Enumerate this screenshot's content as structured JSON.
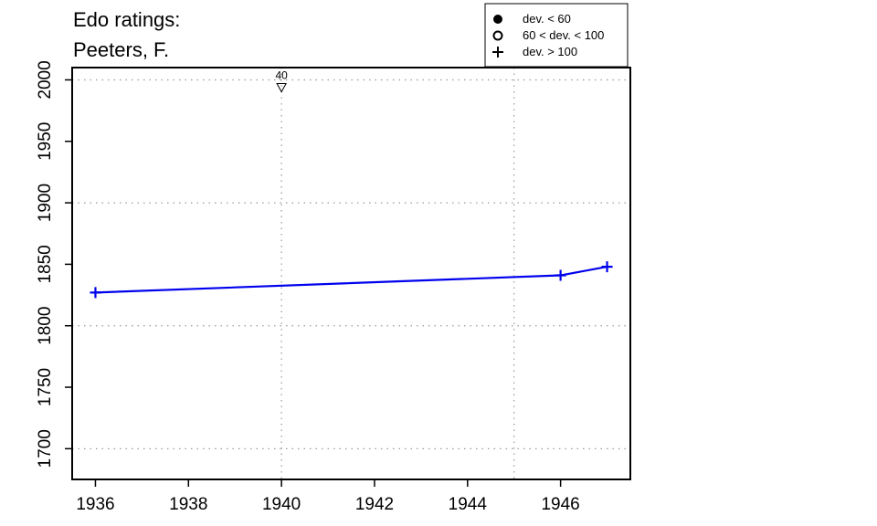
{
  "chart_data": {
    "type": "line",
    "title": [
      "Edo ratings:",
      "Peeters, F."
    ],
    "xlabel": "",
    "ylabel": "",
    "xlim": [
      1935.5,
      1947.5
    ],
    "ylim": [
      1675,
      2010
    ],
    "x_ticks": [
      1936,
      1938,
      1940,
      1942,
      1944,
      1946
    ],
    "x_tick_labels": [
      "1936",
      "1938",
      "1940",
      "1942",
      "1944",
      "1946"
    ],
    "y_ticks": [
      1700,
      1750,
      1800,
      1850,
      1900,
      1950,
      2000
    ],
    "y_tick_labels": [
      "1700",
      "1750",
      "1800",
      "1850",
      "1900",
      "1950",
      "2000"
    ],
    "grid": {
      "horizontal": [
        1700,
        1800,
        1900,
        2000
      ],
      "vertical": [
        1940,
        1945
      ],
      "style": "dotted"
    },
    "series": [
      {
        "color": "#0000ee",
        "marker": "plus",
        "x": [
          1936,
          1946,
          1947
        ],
        "y": [
          1827,
          1841,
          1848
        ]
      }
    ],
    "annotations": [
      {
        "x": 1940,
        "y": 1994,
        "marker": "triangle-down",
        "label": "40"
      }
    ],
    "legend": {
      "position": "top-right",
      "entries": [
        {
          "symbol": "filled-circle",
          "label": "dev. < 60"
        },
        {
          "symbol": "open-circle",
          "label": "60 < dev. < 100"
        },
        {
          "symbol": "plus",
          "label": "dev. > 100"
        }
      ]
    }
  }
}
